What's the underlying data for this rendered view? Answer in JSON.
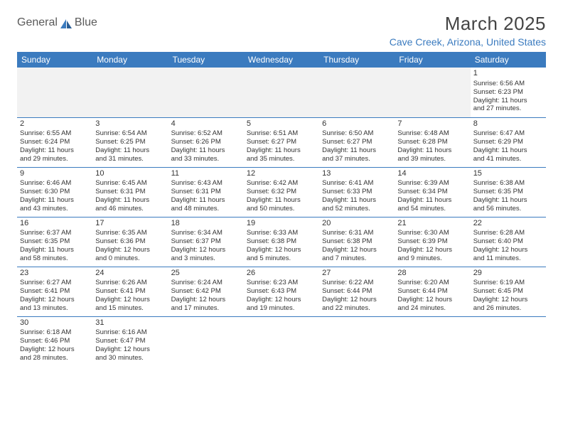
{
  "logo": {
    "text1": "General",
    "text2": "Blue"
  },
  "title": "March 2025",
  "location": "Cave Creek, Arizona, United States",
  "colors": {
    "header_bg": "#3b7bbf",
    "header_text": "#ffffff",
    "location_text": "#3b7bbf",
    "cell_text": "#333333",
    "stripe_bg": "#f2f2f2",
    "rule": "#3b7bbf"
  },
  "day_headers": [
    "Sunday",
    "Monday",
    "Tuesday",
    "Wednesday",
    "Thursday",
    "Friday",
    "Saturday"
  ],
  "weeks": [
    [
      null,
      null,
      null,
      null,
      null,
      null,
      {
        "n": "1",
        "sunrise": "Sunrise: 6:56 AM",
        "sunset": "Sunset: 6:23 PM",
        "day1": "Daylight: 11 hours",
        "day2": "and 27 minutes."
      }
    ],
    [
      {
        "n": "2",
        "sunrise": "Sunrise: 6:55 AM",
        "sunset": "Sunset: 6:24 PM",
        "day1": "Daylight: 11 hours",
        "day2": "and 29 minutes."
      },
      {
        "n": "3",
        "sunrise": "Sunrise: 6:54 AM",
        "sunset": "Sunset: 6:25 PM",
        "day1": "Daylight: 11 hours",
        "day2": "and 31 minutes."
      },
      {
        "n": "4",
        "sunrise": "Sunrise: 6:52 AM",
        "sunset": "Sunset: 6:26 PM",
        "day1": "Daylight: 11 hours",
        "day2": "and 33 minutes."
      },
      {
        "n": "5",
        "sunrise": "Sunrise: 6:51 AM",
        "sunset": "Sunset: 6:27 PM",
        "day1": "Daylight: 11 hours",
        "day2": "and 35 minutes."
      },
      {
        "n": "6",
        "sunrise": "Sunrise: 6:50 AM",
        "sunset": "Sunset: 6:27 PM",
        "day1": "Daylight: 11 hours",
        "day2": "and 37 minutes."
      },
      {
        "n": "7",
        "sunrise": "Sunrise: 6:48 AM",
        "sunset": "Sunset: 6:28 PM",
        "day1": "Daylight: 11 hours",
        "day2": "and 39 minutes."
      },
      {
        "n": "8",
        "sunrise": "Sunrise: 6:47 AM",
        "sunset": "Sunset: 6:29 PM",
        "day1": "Daylight: 11 hours",
        "day2": "and 41 minutes."
      }
    ],
    [
      {
        "n": "9",
        "sunrise": "Sunrise: 6:46 AM",
        "sunset": "Sunset: 6:30 PM",
        "day1": "Daylight: 11 hours",
        "day2": "and 43 minutes."
      },
      {
        "n": "10",
        "sunrise": "Sunrise: 6:45 AM",
        "sunset": "Sunset: 6:31 PM",
        "day1": "Daylight: 11 hours",
        "day2": "and 46 minutes."
      },
      {
        "n": "11",
        "sunrise": "Sunrise: 6:43 AM",
        "sunset": "Sunset: 6:31 PM",
        "day1": "Daylight: 11 hours",
        "day2": "and 48 minutes."
      },
      {
        "n": "12",
        "sunrise": "Sunrise: 6:42 AM",
        "sunset": "Sunset: 6:32 PM",
        "day1": "Daylight: 11 hours",
        "day2": "and 50 minutes."
      },
      {
        "n": "13",
        "sunrise": "Sunrise: 6:41 AM",
        "sunset": "Sunset: 6:33 PM",
        "day1": "Daylight: 11 hours",
        "day2": "and 52 minutes."
      },
      {
        "n": "14",
        "sunrise": "Sunrise: 6:39 AM",
        "sunset": "Sunset: 6:34 PM",
        "day1": "Daylight: 11 hours",
        "day2": "and 54 minutes."
      },
      {
        "n": "15",
        "sunrise": "Sunrise: 6:38 AM",
        "sunset": "Sunset: 6:35 PM",
        "day1": "Daylight: 11 hours",
        "day2": "and 56 minutes."
      }
    ],
    [
      {
        "n": "16",
        "sunrise": "Sunrise: 6:37 AM",
        "sunset": "Sunset: 6:35 PM",
        "day1": "Daylight: 11 hours",
        "day2": "and 58 minutes."
      },
      {
        "n": "17",
        "sunrise": "Sunrise: 6:35 AM",
        "sunset": "Sunset: 6:36 PM",
        "day1": "Daylight: 12 hours",
        "day2": "and 0 minutes."
      },
      {
        "n": "18",
        "sunrise": "Sunrise: 6:34 AM",
        "sunset": "Sunset: 6:37 PM",
        "day1": "Daylight: 12 hours",
        "day2": "and 3 minutes."
      },
      {
        "n": "19",
        "sunrise": "Sunrise: 6:33 AM",
        "sunset": "Sunset: 6:38 PM",
        "day1": "Daylight: 12 hours",
        "day2": "and 5 minutes."
      },
      {
        "n": "20",
        "sunrise": "Sunrise: 6:31 AM",
        "sunset": "Sunset: 6:38 PM",
        "day1": "Daylight: 12 hours",
        "day2": "and 7 minutes."
      },
      {
        "n": "21",
        "sunrise": "Sunrise: 6:30 AM",
        "sunset": "Sunset: 6:39 PM",
        "day1": "Daylight: 12 hours",
        "day2": "and 9 minutes."
      },
      {
        "n": "22",
        "sunrise": "Sunrise: 6:28 AM",
        "sunset": "Sunset: 6:40 PM",
        "day1": "Daylight: 12 hours",
        "day2": "and 11 minutes."
      }
    ],
    [
      {
        "n": "23",
        "sunrise": "Sunrise: 6:27 AM",
        "sunset": "Sunset: 6:41 PM",
        "day1": "Daylight: 12 hours",
        "day2": "and 13 minutes."
      },
      {
        "n": "24",
        "sunrise": "Sunrise: 6:26 AM",
        "sunset": "Sunset: 6:41 PM",
        "day1": "Daylight: 12 hours",
        "day2": "and 15 minutes."
      },
      {
        "n": "25",
        "sunrise": "Sunrise: 6:24 AM",
        "sunset": "Sunset: 6:42 PM",
        "day1": "Daylight: 12 hours",
        "day2": "and 17 minutes."
      },
      {
        "n": "26",
        "sunrise": "Sunrise: 6:23 AM",
        "sunset": "Sunset: 6:43 PM",
        "day1": "Daylight: 12 hours",
        "day2": "and 19 minutes."
      },
      {
        "n": "27",
        "sunrise": "Sunrise: 6:22 AM",
        "sunset": "Sunset: 6:44 PM",
        "day1": "Daylight: 12 hours",
        "day2": "and 22 minutes."
      },
      {
        "n": "28",
        "sunrise": "Sunrise: 6:20 AM",
        "sunset": "Sunset: 6:44 PM",
        "day1": "Daylight: 12 hours",
        "day2": "and 24 minutes."
      },
      {
        "n": "29",
        "sunrise": "Sunrise: 6:19 AM",
        "sunset": "Sunset: 6:45 PM",
        "day1": "Daylight: 12 hours",
        "day2": "and 26 minutes."
      }
    ],
    [
      {
        "n": "30",
        "sunrise": "Sunrise: 6:18 AM",
        "sunset": "Sunset: 6:46 PM",
        "day1": "Daylight: 12 hours",
        "day2": "and 28 minutes."
      },
      {
        "n": "31",
        "sunrise": "Sunrise: 6:16 AM",
        "sunset": "Sunset: 6:47 PM",
        "day1": "Daylight: 12 hours",
        "day2": "and 30 minutes."
      },
      null,
      null,
      null,
      null,
      null
    ]
  ]
}
